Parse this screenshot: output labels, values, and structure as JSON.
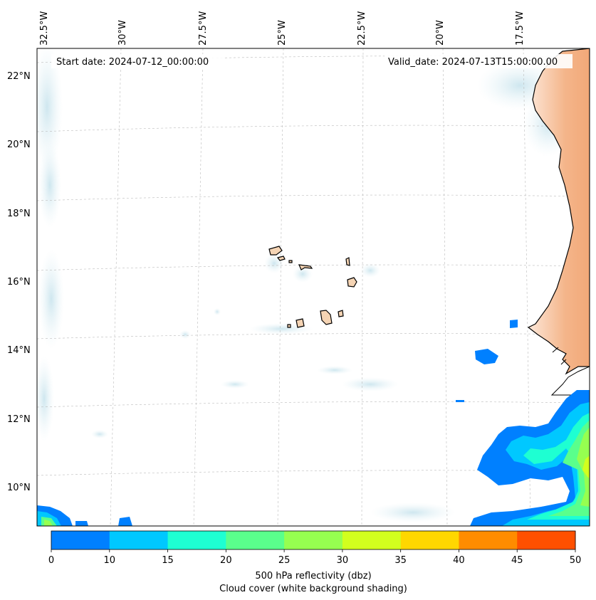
{
  "header": {
    "start_date": "Start date: 2024-07-12_00:00:00",
    "valid_date": "Valid_date: 2024-07-13T15:00:00.00"
  },
  "axes": {
    "lon_labels": [
      "32.5°W",
      "30°W",
      "27.5°W",
      "25°W",
      "22.5°W",
      "20°W",
      "17.5°W"
    ],
    "lat_labels": [
      "22°N",
      "20°N",
      "18°N",
      "16°N",
      "14°N",
      "12°N",
      "10°N"
    ],
    "gridlines": true
  },
  "colorbar": {
    "ticks": [
      "0",
      "10",
      "15",
      "20",
      "25",
      "30",
      "35",
      "40",
      "45",
      "50"
    ],
    "colors": [
      "#0080ff",
      "#00c8ff",
      "#1effd2",
      "#5aff8c",
      "#96ff50",
      "#d2ff1e",
      "#ffd700",
      "#ff8c00",
      "#ff5000"
    ],
    "label_line1": "500 hPa reflectivity (dbz)",
    "label_line2": "Cloud cover (white background shading)"
  },
  "palette": {
    "cloud": "#cfe6ee",
    "land_east": "#f3b98d",
    "island_fill": "#f5d4b4",
    "coast": "#000000",
    "grid": "#bbbbbb"
  }
}
